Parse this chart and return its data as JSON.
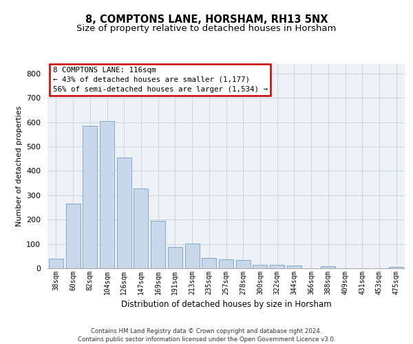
{
  "title_line1": "8, COMPTONS LANE, HORSHAM, RH13 5NX",
  "title_line2": "Size of property relative to detached houses in Horsham",
  "xlabel": "Distribution of detached houses by size in Horsham",
  "ylabel": "Number of detached properties",
  "categories": [
    "38sqm",
    "60sqm",
    "82sqm",
    "104sqm",
    "126sqm",
    "147sqm",
    "169sqm",
    "191sqm",
    "213sqm",
    "235sqm",
    "257sqm",
    "278sqm",
    "300sqm",
    "322sqm",
    "344sqm",
    "366sqm",
    "388sqm",
    "409sqm",
    "431sqm",
    "453sqm",
    "475sqm"
  ],
  "values": [
    40,
    265,
    585,
    605,
    455,
    328,
    196,
    88,
    103,
    42,
    38,
    33,
    13,
    13,
    10,
    0,
    8,
    0,
    0,
    0,
    7
  ],
  "bar_color": "#c8d8ea",
  "bar_edge_color": "#7aaaca",
  "annotation_text": "8 COMPTONS LANE: 116sqm\n← 43% of detached houses are smaller (1,177)\n56% of semi-detached houses are larger (1,534) →",
  "annotation_box_color": "#ffffff",
  "annotation_box_edge_color": "#cc0000",
  "grid_color": "#c8d4e0",
  "background_color": "#eef2f7",
  "footer_text": "Contains HM Land Registry data © Crown copyright and database right 2024.\nContains public sector information licensed under the Open Government Licence v3.0.",
  "ylim": [
    0,
    840
  ],
  "yticks": [
    0,
    100,
    200,
    300,
    400,
    500,
    600,
    700,
    800
  ],
  "title_fontsize": 10.5,
  "subtitle_fontsize": 9.5
}
